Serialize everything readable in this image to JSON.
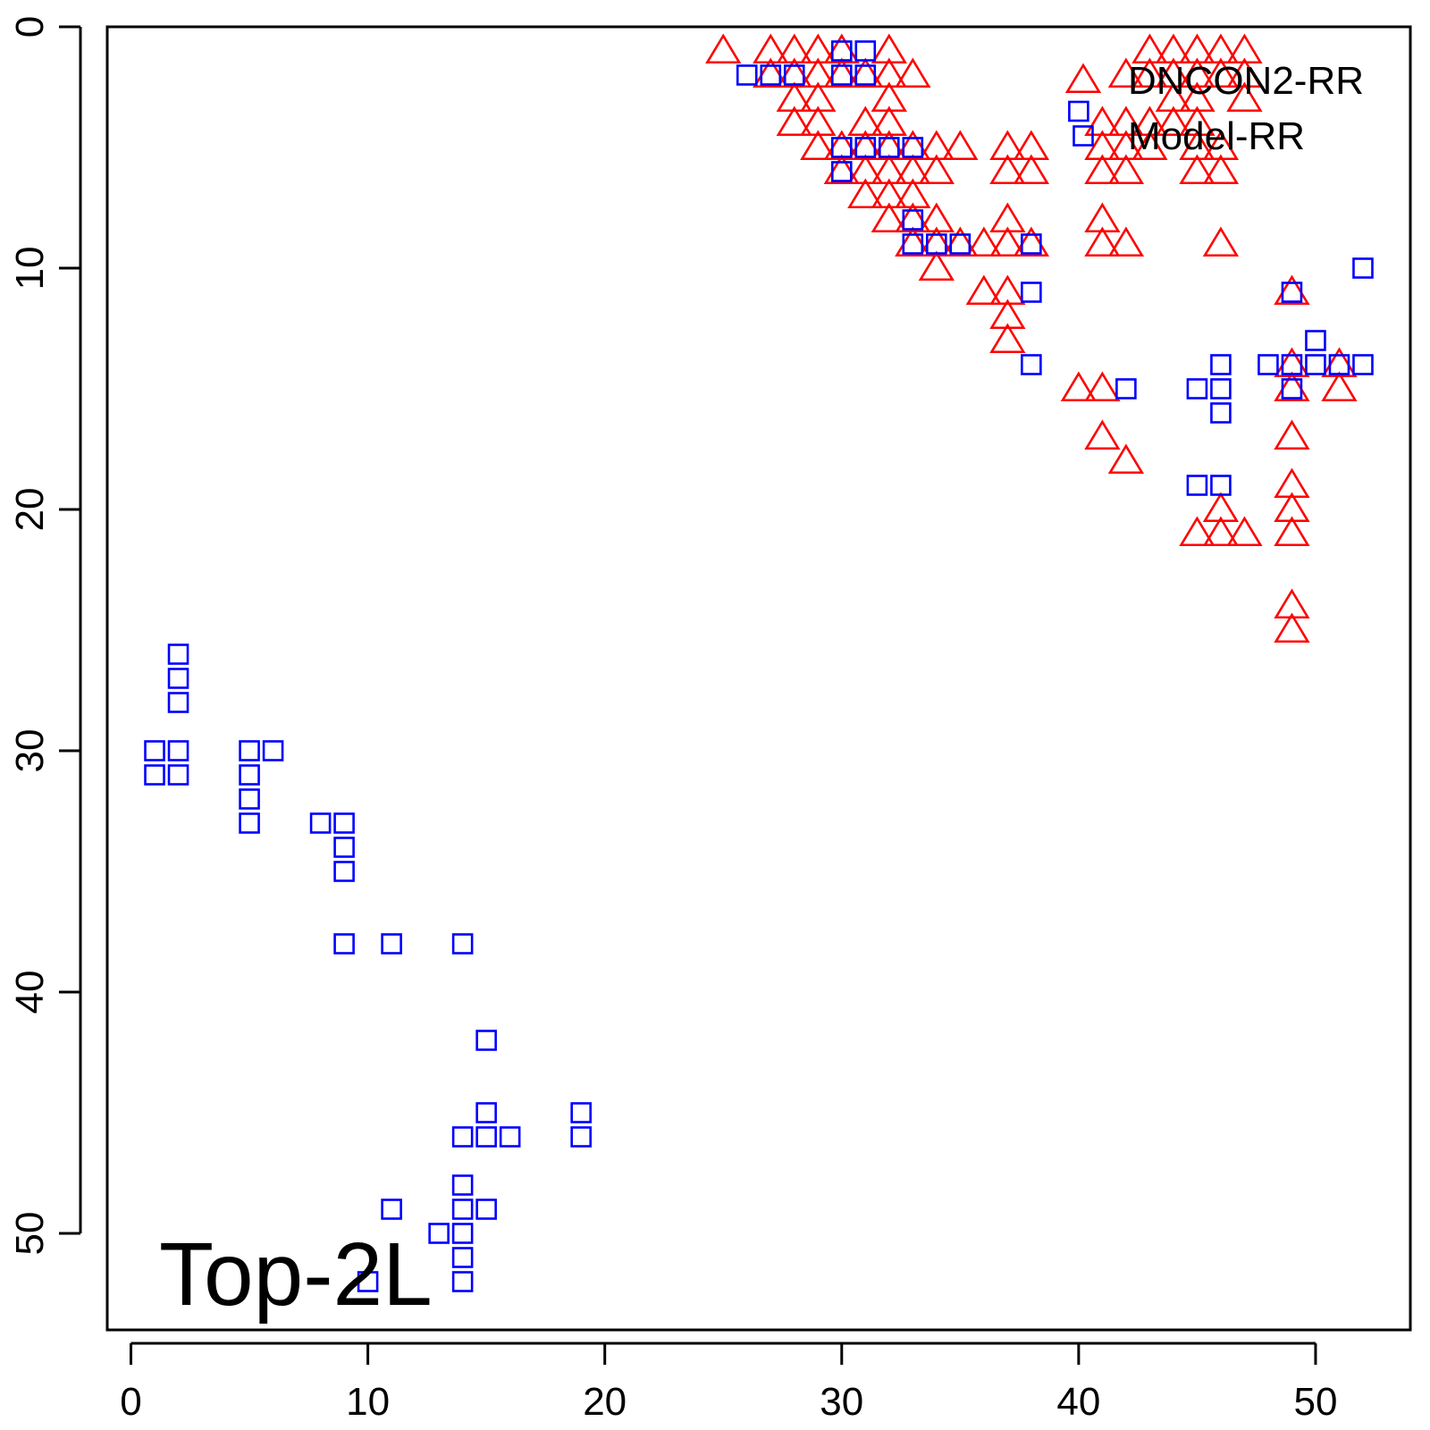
{
  "chart_data": {
    "type": "scatter",
    "title": "",
    "xlabel": "",
    "ylabel": "",
    "xlim": [
      -1,
      54
    ],
    "ylim": [
      0,
      54
    ],
    "y_inverted": true,
    "grid": false,
    "legend_position": "top-right",
    "annotation": "Top-2L",
    "x_ticks": [
      0,
      10,
      20,
      30,
      40,
      50
    ],
    "y_ticks": [
      0,
      10,
      20,
      30,
      40,
      50
    ],
    "series": [
      {
        "name": "DNCON2-RR",
        "marker": "triangle-up",
        "color": "#ff0000",
        "points": [
          [
            25,
            1
          ],
          [
            27,
            1
          ],
          [
            28,
            1
          ],
          [
            29,
            1
          ],
          [
            30,
            1
          ],
          [
            32,
            1
          ],
          [
            27,
            2
          ],
          [
            28,
            2
          ],
          [
            29,
            2
          ],
          [
            30,
            2
          ],
          [
            31,
            2
          ],
          [
            32,
            2
          ],
          [
            33,
            2
          ],
          [
            28,
            3
          ],
          [
            29,
            3
          ],
          [
            32,
            3
          ],
          [
            28,
            4
          ],
          [
            29,
            4
          ],
          [
            31,
            4
          ],
          [
            32,
            4
          ],
          [
            29,
            5
          ],
          [
            30,
            5
          ],
          [
            31,
            5
          ],
          [
            32,
            5
          ],
          [
            33,
            5
          ],
          [
            34,
            5
          ],
          [
            35,
            5
          ],
          [
            30,
            6
          ],
          [
            31,
            6
          ],
          [
            32,
            6
          ],
          [
            33,
            6
          ],
          [
            34,
            6
          ],
          [
            31,
            7
          ],
          [
            32,
            7
          ],
          [
            33,
            7
          ],
          [
            32,
            8
          ],
          [
            33,
            8
          ],
          [
            34,
            8
          ],
          [
            33,
            9
          ],
          [
            34,
            9
          ],
          [
            35,
            9
          ],
          [
            36,
            9
          ],
          [
            37,
            9
          ],
          [
            38,
            9
          ],
          [
            34,
            10
          ],
          [
            36,
            11
          ],
          [
            37,
            11
          ],
          [
            37,
            12
          ],
          [
            37,
            13
          ],
          [
            37,
            5
          ],
          [
            38,
            5
          ],
          [
            37,
            6
          ],
          [
            38,
            6
          ],
          [
            37,
            8
          ],
          [
            41,
            4
          ],
          [
            42,
            4
          ],
          [
            43,
            4
          ],
          [
            44,
            4
          ],
          [
            45,
            4
          ],
          [
            41,
            5
          ],
          [
            42,
            5
          ],
          [
            43,
            5
          ],
          [
            45,
            5
          ],
          [
            46,
            5
          ],
          [
            41,
            6
          ],
          [
            42,
            6
          ],
          [
            45,
            6
          ],
          [
            46,
            6
          ],
          [
            42,
            2
          ],
          [
            43,
            2
          ],
          [
            44,
            2
          ],
          [
            45,
            2
          ],
          [
            46,
            2
          ],
          [
            47,
            2
          ],
          [
            43,
            1
          ],
          [
            44,
            1
          ],
          [
            45,
            1
          ],
          [
            46,
            1
          ],
          [
            47,
            1
          ],
          [
            44,
            3
          ],
          [
            45,
            3
          ],
          [
            47,
            3
          ],
          [
            41,
            8
          ],
          [
            41,
            9
          ],
          [
            42,
            9
          ],
          [
            46,
            9
          ],
          [
            40,
            15
          ],
          [
            41,
            15
          ],
          [
            41,
            17
          ],
          [
            42,
            18
          ],
          [
            46,
            20
          ],
          [
            45,
            21
          ],
          [
            46,
            21
          ],
          [
            47,
            21
          ],
          [
            49,
            11
          ],
          [
            49,
            14
          ],
          [
            49,
            15
          ],
          [
            51,
            14
          ],
          [
            51,
            15
          ],
          [
            49,
            17
          ],
          [
            49,
            19
          ],
          [
            49,
            20
          ],
          [
            49,
            21
          ],
          [
            49,
            24
          ],
          [
            49,
            25
          ]
        ]
      },
      {
        "name": "Model-RR",
        "marker": "square",
        "color": "#0000ff",
        "points": [
          [
            30,
            1
          ],
          [
            31,
            1
          ],
          [
            26,
            2
          ],
          [
            27,
            2
          ],
          [
            28,
            2
          ],
          [
            30,
            2
          ],
          [
            31,
            2
          ],
          [
            30,
            5
          ],
          [
            31,
            5
          ],
          [
            32,
            5
          ],
          [
            33,
            5
          ],
          [
            30,
            6
          ],
          [
            33,
            8
          ],
          [
            33,
            9
          ],
          [
            34,
            9
          ],
          [
            35,
            9
          ],
          [
            38,
            9
          ],
          [
            38,
            11
          ],
          [
            38,
            14
          ],
          [
            42,
            15
          ],
          [
            45,
            15
          ],
          [
            46,
            14
          ],
          [
            46,
            15
          ],
          [
            46,
            16
          ],
          [
            45,
            19
          ],
          [
            46,
            19
          ],
          [
            49,
            11
          ],
          [
            48,
            14
          ],
          [
            49,
            14
          ],
          [
            49,
            15
          ],
          [
            50,
            13
          ],
          [
            50,
            14
          ],
          [
            51,
            14
          ],
          [
            52,
            14
          ],
          [
            52,
            10
          ],
          [
            40,
            3.5
          ],
          [
            2,
            26
          ],
          [
            2,
            27
          ],
          [
            2,
            28
          ],
          [
            1,
            30
          ],
          [
            2,
            30
          ],
          [
            1,
            31
          ],
          [
            2,
            31
          ],
          [
            5,
            30
          ],
          [
            6,
            30
          ],
          [
            5,
            31
          ],
          [
            5,
            32
          ],
          [
            5,
            33
          ],
          [
            8,
            33
          ],
          [
            9,
            33
          ],
          [
            9,
            34
          ],
          [
            9,
            35
          ],
          [
            9,
            38
          ],
          [
            11,
            38
          ],
          [
            14,
            38
          ],
          [
            15,
            42
          ],
          [
            15,
            45
          ],
          [
            19,
            45
          ],
          [
            14,
            46
          ],
          [
            15,
            46
          ],
          [
            16,
            46
          ],
          [
            19,
            46
          ],
          [
            14,
            48
          ],
          [
            14,
            49
          ],
          [
            15,
            49
          ],
          [
            11,
            49
          ],
          [
            13,
            50
          ],
          [
            14,
            50
          ],
          [
            14,
            51
          ],
          [
            14,
            52
          ],
          [
            10,
            52
          ]
        ]
      }
    ]
  }
}
